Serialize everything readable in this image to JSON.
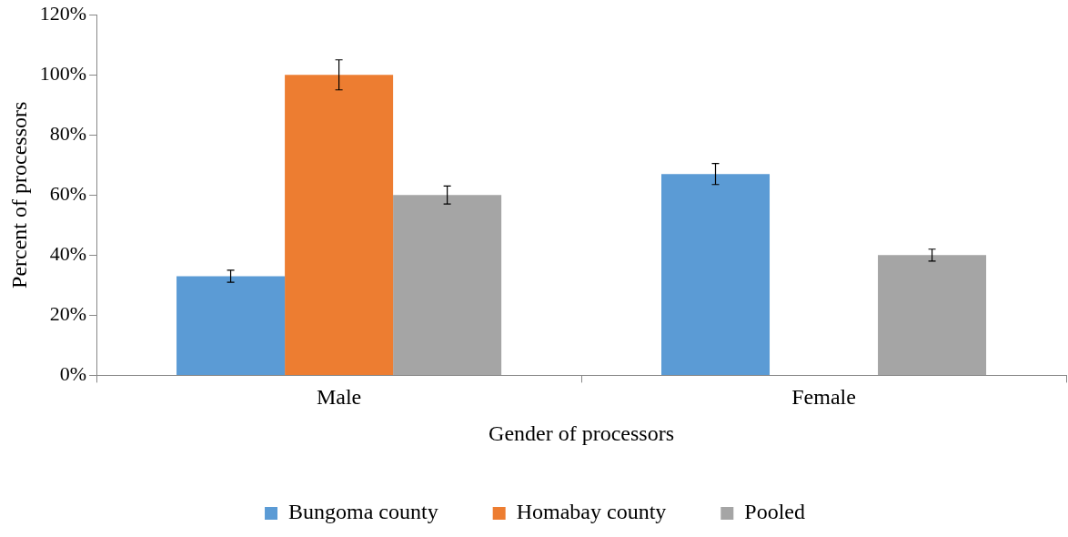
{
  "chart_data": {
    "type": "bar",
    "xlabel": "Gender of processors",
    "ylabel": "Percent of processors",
    "categories": [
      "Male",
      "Female"
    ],
    "series": [
      {
        "name": "Bungoma county",
        "color": "#5b9bd5",
        "values": [
          33,
          67
        ],
        "errors": [
          2,
          3.5
        ]
      },
      {
        "name": "Homabay county",
        "color": "#ed7d31",
        "values": [
          100,
          0
        ],
        "errors": [
          5,
          null
        ]
      },
      {
        "name": "Pooled",
        "color": "#a5a5a5",
        "values": [
          60,
          40
        ],
        "errors": [
          3,
          2
        ]
      }
    ],
    "ylim": [
      0,
      120
    ],
    "yticks": [
      {
        "value": 0,
        "label": "0%"
      },
      {
        "value": 20,
        "label": "20%"
      },
      {
        "value": 40,
        "label": "40%"
      },
      {
        "value": 60,
        "label": "60%"
      },
      {
        "value": 80,
        "label": "80%"
      },
      {
        "value": 100,
        "label": "100%"
      },
      {
        "value": 120,
        "label": "120%"
      }
    ],
    "grid": false,
    "legend": "bottom"
  }
}
